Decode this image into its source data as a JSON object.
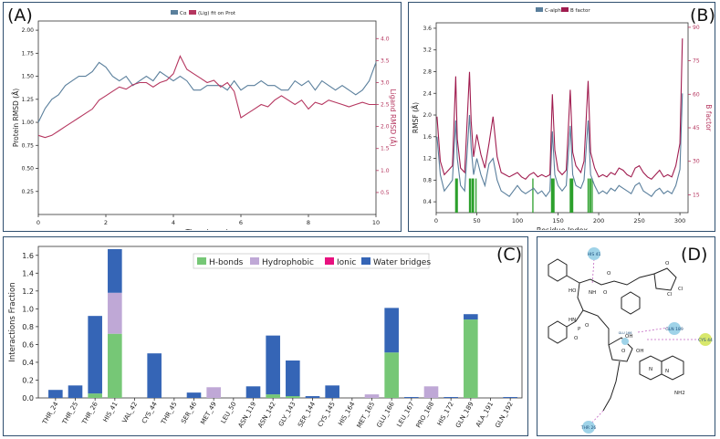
{
  "colors": {
    "protein": "#5a7f9c",
    "ligand": "#b5365f",
    "rmsf": "#5a7f9c",
    "bfactor": "#a01c4f",
    "contacts": "#2ca02c",
    "hbonds": "#76c776",
    "hydrophobic": "#bfa8d6",
    "ionic": "#e8117f",
    "water": "#3565b6",
    "panel_border": "#2f4f6f"
  },
  "panel_labels": {
    "a": "(A)",
    "b": "(B)",
    "c": "(C)",
    "d": "(D)"
  },
  "chart_data": [
    {
      "type": "line",
      "panel": "A",
      "legend": [
        "Cα",
        "(Lig) fit on Prot"
      ],
      "xlabel": "Time (nsec)",
      "ylabel_left": "Protein RMSD (Å)",
      "ylabel_right": "Ligand RMSD (Å)",
      "xlim": [
        0,
        10
      ],
      "ylim_left": [
        0,
        2.1
      ],
      "ylim_right": [
        0,
        4.4
      ],
      "x_ticks": [
        "0",
        "2",
        "4",
        "6",
        "8",
        "10"
      ],
      "y_ticks_left": [
        "0.25",
        "0.50",
        "0.75",
        "1.00",
        "1.25",
        "1.50",
        "1.75",
        "2.00"
      ],
      "y_ticks_right": [
        "0.5",
        "1.0",
        "1.5",
        "2.0",
        "2.5",
        "3.0",
        "3.5",
        "4.0"
      ],
      "series": [
        {
          "name": "Cα",
          "axis": "left",
          "x": [
            0,
            0.2,
            0.4,
            0.6,
            0.8,
            1.0,
            1.2,
            1.4,
            1.6,
            1.8,
            2.0,
            2.2,
            2.4,
            2.6,
            2.8,
            3.0,
            3.2,
            3.4,
            3.6,
            3.8,
            4.0,
            4.2,
            4.4,
            4.6,
            4.8,
            5.0,
            5.2,
            5.4,
            5.6,
            5.8,
            6.0,
            6.2,
            6.4,
            6.6,
            6.8,
            7.0,
            7.2,
            7.4,
            7.6,
            7.8,
            8.0,
            8.2,
            8.4,
            8.6,
            8.8,
            9.0,
            9.2,
            9.4,
            9.6,
            9.8,
            10.0
          ],
          "values": [
            1.0,
            1.15,
            1.25,
            1.3,
            1.4,
            1.45,
            1.5,
            1.5,
            1.55,
            1.65,
            1.6,
            1.5,
            1.45,
            1.5,
            1.4,
            1.45,
            1.5,
            1.45,
            1.55,
            1.5,
            1.45,
            1.5,
            1.45,
            1.35,
            1.35,
            1.4,
            1.4,
            1.4,
            1.35,
            1.45,
            1.35,
            1.4,
            1.4,
            1.45,
            1.4,
            1.4,
            1.35,
            1.35,
            1.45,
            1.4,
            1.45,
            1.35,
            1.45,
            1.4,
            1.35,
            1.4,
            1.35,
            1.3,
            1.35,
            1.45,
            1.65
          ]
        },
        {
          "name": "(Lig) fit on Prot",
          "axis": "right",
          "x": [
            0,
            0.2,
            0.4,
            0.6,
            0.8,
            1.0,
            1.2,
            1.4,
            1.6,
            1.8,
            2.0,
            2.2,
            2.4,
            2.6,
            2.8,
            3.0,
            3.2,
            3.4,
            3.6,
            3.8,
            4.0,
            4.2,
            4.4,
            4.6,
            4.8,
            5.0,
            5.2,
            5.4,
            5.6,
            5.8,
            6.0,
            6.2,
            6.4,
            6.6,
            6.8,
            7.0,
            7.2,
            7.4,
            7.6,
            7.8,
            8.0,
            8.2,
            8.4,
            8.6,
            8.8,
            9.0,
            9.2,
            9.4,
            9.6,
            9.8,
            10.0
          ],
          "values": [
            1.8,
            1.75,
            1.8,
            1.9,
            2.0,
            2.1,
            2.2,
            2.3,
            2.4,
            2.6,
            2.7,
            2.8,
            2.9,
            2.85,
            2.95,
            3.0,
            3.0,
            2.9,
            3.0,
            3.05,
            3.2,
            3.6,
            3.3,
            3.2,
            3.1,
            3.0,
            3.05,
            2.9,
            3.0,
            2.8,
            2.2,
            2.3,
            2.4,
            2.5,
            2.45,
            2.6,
            2.7,
            2.6,
            2.5,
            2.6,
            2.4,
            2.55,
            2.5,
            2.6,
            2.55,
            2.5,
            2.45,
            2.5,
            2.55,
            2.5,
            2.5
          ]
        }
      ]
    },
    {
      "type": "line",
      "panel": "B",
      "legend": [
        "C-alpha",
        "B factor"
      ],
      "xlabel": "Residue Index",
      "ylabel_left": "RMSF (Å)",
      "ylabel_right": "B factor",
      "xlim": [
        0,
        310
      ],
      "ylim_left": [
        0.2,
        3.7
      ],
      "ylim_right": [
        7,
        92
      ],
      "x_ticks": [
        "0",
        "50",
        "100",
        "150",
        "200",
        "250",
        "300"
      ],
      "y_ticks_left": [
        "0.4",
        "0.8",
        "1.2",
        "1.6",
        "2.0",
        "2.4",
        "2.8",
        "3.2",
        "3.6"
      ],
      "y_ticks_right": [
        "15",
        "30",
        "45",
        "60",
        "75",
        "90"
      ],
      "contact_residues": [
        24,
        25,
        26,
        41,
        42,
        44,
        45,
        46,
        49,
        119,
        142,
        143,
        144,
        145,
        165,
        166,
        167,
        168,
        187,
        189,
        190,
        192
      ],
      "series": [
        {
          "name": "C-alpha",
          "axis": "left",
          "x": [
            1,
            5,
            10,
            15,
            20,
            24,
            26,
            30,
            35,
            41,
            43,
            46,
            50,
            55,
            60,
            65,
            70,
            75,
            80,
            85,
            90,
            95,
            100,
            105,
            110,
            115,
            120,
            125,
            130,
            135,
            140,
            143,
            146,
            150,
            155,
            160,
            165,
            168,
            172,
            178,
            182,
            187,
            190,
            195,
            200,
            205,
            210,
            215,
            220,
            225,
            230,
            235,
            240,
            245,
            250,
            255,
            260,
            265,
            270,
            275,
            280,
            285,
            290,
            295,
            300,
            303
          ],
          "values": [
            1.6,
            0.9,
            0.6,
            0.7,
            0.8,
            1.9,
            1.2,
            0.7,
            0.6,
            2.0,
            1.4,
            0.9,
            1.2,
            0.9,
            0.7,
            1.1,
            1.2,
            0.8,
            0.6,
            0.55,
            0.5,
            0.6,
            0.7,
            0.6,
            0.55,
            0.6,
            0.65,
            0.55,
            0.6,
            0.5,
            0.6,
            1.7,
            0.9,
            0.7,
            0.6,
            0.7,
            1.8,
            0.9,
            0.7,
            0.65,
            0.8,
            1.9,
            0.9,
            0.7,
            0.55,
            0.6,
            0.55,
            0.65,
            0.6,
            0.7,
            0.65,
            0.6,
            0.55,
            0.7,
            0.75,
            0.6,
            0.55,
            0.5,
            0.6,
            0.65,
            0.55,
            0.6,
            0.55,
            0.7,
            1.0,
            2.4
          ]
        },
        {
          "name": "B factor",
          "axis": "right",
          "x": [
            1,
            5,
            10,
            15,
            20,
            24,
            26,
            30,
            35,
            41,
            43,
            46,
            50,
            55,
            60,
            65,
            70,
            75,
            80,
            85,
            90,
            95,
            100,
            105,
            110,
            115,
            120,
            125,
            130,
            135,
            140,
            143,
            146,
            150,
            155,
            160,
            165,
            168,
            172,
            178,
            182,
            187,
            190,
            195,
            200,
            205,
            210,
            215,
            220,
            225,
            230,
            235,
            240,
            245,
            250,
            255,
            260,
            265,
            270,
            275,
            280,
            285,
            290,
            295,
            300,
            303
          ],
          "values": [
            50,
            30,
            24,
            26,
            28,
            68,
            40,
            27,
            25,
            70,
            48,
            32,
            42,
            33,
            27,
            38,
            50,
            32,
            25,
            24,
            23,
            24,
            25,
            23,
            22,
            24,
            25,
            23,
            24,
            23,
            24,
            60,
            35,
            26,
            24,
            26,
            62,
            34,
            28,
            25,
            30,
            66,
            34,
            27,
            23,
            24,
            23,
            25,
            24,
            27,
            26,
            24,
            23,
            27,
            28,
            25,
            23,
            22,
            24,
            26,
            23,
            24,
            23,
            28,
            38,
            85
          ]
        }
      ]
    },
    {
      "type": "bar",
      "panel": "C",
      "stacked": true,
      "ylabel": "Interactions Fraction",
      "ylim": [
        0,
        1.7
      ],
      "y_ticks": [
        "0.0",
        "0.2",
        "0.4",
        "0.6",
        "0.8",
        "1.0",
        "1.2",
        "1.4",
        "1.6"
      ],
      "categories": [
        "THR_24",
        "THR_25",
        "THR_26",
        "HIS_41",
        "VAL_42",
        "CYS_44",
        "THR_45",
        "SER_46",
        "MET_49",
        "LEU_50",
        "ASN_119",
        "ASN_142",
        "GLY_143",
        "SER_144",
        "CYS_145",
        "HIS_164",
        "MET_165",
        "GLU_166",
        "LEU_167",
        "PRO_168",
        "HIS_172",
        "GLN_189",
        "ALA_191",
        "GLN_192"
      ],
      "series": [
        {
          "name": "H-bonds",
          "values": [
            0,
            0,
            0.05,
            0.72,
            0,
            0,
            0,
            0,
            0,
            0,
            0,
            0.04,
            0.02,
            0,
            0,
            0,
            0,
            0.51,
            0,
            0,
            0,
            0.88,
            0,
            0
          ]
        },
        {
          "name": "Hydrophobic",
          "values": [
            0,
            0,
            0,
            0.46,
            0,
            0,
            0,
            0,
            0.12,
            0,
            0,
            0,
            0,
            0,
            0,
            0,
            0.04,
            0,
            0,
            0.13,
            0,
            0,
            0,
            0
          ]
        },
        {
          "name": "Ionic",
          "values": [
            0,
            0,
            0,
            0,
            0,
            0,
            0,
            0,
            0,
            0,
            0,
            0,
            0,
            0,
            0,
            0,
            0,
            0,
            0,
            0,
            0,
            0,
            0,
            0
          ]
        },
        {
          "name": "Water bridges",
          "values": [
            0.09,
            0.14,
            0.87,
            0.49,
            0,
            0.5,
            0,
            0.06,
            0,
            0,
            0.13,
            0.66,
            0.4,
            0.02,
            0.14,
            0,
            0,
            0.5,
            0.01,
            0,
            0.01,
            0.06,
            0,
            0.01
          ]
        }
      ]
    }
  ],
  "diagram_d": {
    "atom_labels": [
      "HO",
      "O",
      "NH",
      "O",
      "HN",
      "P",
      "O",
      "O",
      "O",
      "OH",
      "OH",
      "N",
      "N",
      "NH2",
      "O",
      "Cl",
      "Cl"
    ],
    "residue_bubbles": [
      "HIS 41",
      "GLN 189",
      "CYS 44",
      "THR 26",
      "GLU 166"
    ]
  }
}
